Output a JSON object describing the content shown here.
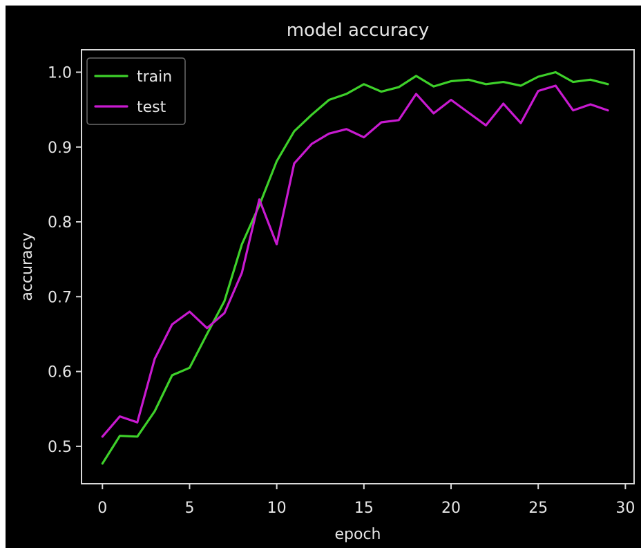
{
  "chart_data": {
    "type": "line",
    "title": "model accuracy",
    "xlabel": "epoch",
    "ylabel": "accuracy",
    "xlim": [
      -1.2,
      30.5
    ],
    "ylim": [
      0.45,
      1.03
    ],
    "xticks": [
      0,
      5,
      10,
      15,
      20,
      25,
      30
    ],
    "xtick_labels": [
      "0",
      "5",
      "10",
      "15",
      "20",
      "25",
      "30"
    ],
    "yticks": [
      0.5,
      0.6,
      0.7,
      0.8,
      0.9,
      1.0
    ],
    "ytick_labels": [
      "0.5",
      "0.6",
      "0.7",
      "0.8",
      "0.9",
      "1.0"
    ],
    "grid": false,
    "legend_position": "top-left",
    "background": "#000000",
    "axes_color": "#d9d9d9",
    "text_color": "#e6e6e6",
    "x": [
      0,
      1,
      2,
      3,
      4,
      5,
      6,
      7,
      8,
      9,
      10,
      11,
      12,
      13,
      14,
      15,
      16,
      17,
      18,
      19,
      20,
      21,
      22,
      23,
      24,
      25,
      26,
      27,
      28,
      29
    ],
    "series": [
      {
        "name": "train",
        "color": "#3ed12a",
        "values": [
          0.477,
          0.514,
          0.513,
          0.547,
          0.595,
          0.605,
          0.65,
          0.694,
          0.77,
          0.822,
          0.881,
          0.921,
          0.943,
          0.963,
          0.971,
          0.984,
          0.974,
          0.98,
          0.995,
          0.981,
          0.988,
          0.99,
          0.984,
          0.987,
          0.982,
          0.994,
          1.0,
          0.987,
          0.99,
          0.984
        ]
      },
      {
        "name": "test",
        "color": "#c81ad0",
        "values": [
          0.513,
          0.54,
          0.532,
          0.617,
          0.663,
          0.68,
          0.658,
          0.678,
          0.732,
          0.83,
          0.77,
          0.878,
          0.904,
          0.918,
          0.924,
          0.913,
          0.933,
          0.936,
          0.971,
          0.945,
          0.963,
          0.946,
          0.929,
          0.958,
          0.932,
          0.975,
          0.982,
          0.949,
          0.957,
          0.949
        ]
      }
    ]
  }
}
